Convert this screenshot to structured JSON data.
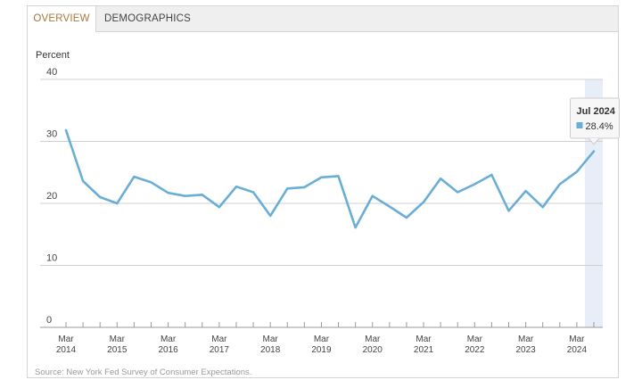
{
  "tabs": [
    {
      "label": "OVERVIEW",
      "active": true
    },
    {
      "label": "DEMOGRAPHICS",
      "active": false
    }
  ],
  "colors": {
    "line": "#6aaed6",
    "active_tab": "#a5773c",
    "highlight": "#e8eef7"
  },
  "tooltip": {
    "title": "Jul 2024",
    "value": "28.4%"
  },
  "source": "Source: New York Fed Survey of Consumer Expectations.",
  "chart_data": {
    "type": "line",
    "ylabel": "Percent",
    "ylim": [
      0,
      40
    ],
    "yticks": [
      0,
      10,
      20,
      30,
      40
    ],
    "x_tick_labels": [
      {
        "month": "Mar",
        "year": "2014"
      },
      {
        "month": "Mar",
        "year": "2015"
      },
      {
        "month": "Mar",
        "year": "2016"
      },
      {
        "month": "Mar",
        "year": "2017"
      },
      {
        "month": "Mar",
        "year": "2018"
      },
      {
        "month": "Mar",
        "year": "2019"
      },
      {
        "month": "Mar",
        "year": "2020"
      },
      {
        "month": "Mar",
        "year": "2021"
      },
      {
        "month": "Mar",
        "year": "2022"
      },
      {
        "month": "Mar",
        "year": "2023"
      },
      {
        "month": "Mar",
        "year": "2024"
      }
    ],
    "grid": true,
    "series": [
      {
        "x": [
          "2014-03",
          "2014-07",
          "2014-11",
          "2015-03",
          "2015-07",
          "2015-11",
          "2016-03",
          "2016-07",
          "2016-11",
          "2017-03",
          "2017-07",
          "2017-11",
          "2018-03",
          "2018-07",
          "2018-11",
          "2019-03",
          "2019-07",
          "2019-11",
          "2020-03",
          "2020-07",
          "2020-11",
          "2021-03",
          "2021-07",
          "2021-11",
          "2022-03",
          "2022-07",
          "2022-11",
          "2023-03",
          "2023-07",
          "2023-11",
          "2024-03",
          "2024-07"
        ],
        "values": [
          31.8,
          23.6,
          21.0,
          20.0,
          24.3,
          23.4,
          21.7,
          21.2,
          21.4,
          19.4,
          22.7,
          21.8,
          18.0,
          22.4,
          22.6,
          24.2,
          24.4,
          16.1,
          21.2,
          19.5,
          17.7,
          20.2,
          24.0,
          21.8,
          23.1,
          24.6,
          18.8,
          22.0,
          19.4,
          23.1,
          25.1,
          28.4
        ]
      }
    ]
  }
}
